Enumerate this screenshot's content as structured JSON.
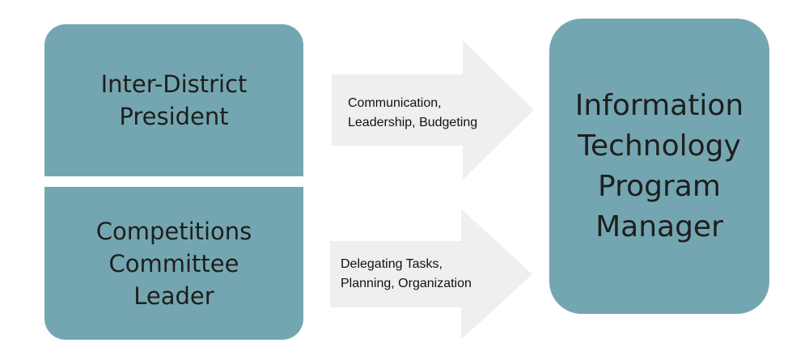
{
  "diagram": {
    "left_boxes": [
      {
        "label": "Inter-District\nPresident"
      },
      {
        "label": "Competitions\nCommittee\nLeader"
      }
    ],
    "arrows": [
      {
        "label": "Communication,\nLeadership, Budgeting"
      },
      {
        "label": "Delegating Tasks,\nPlanning, Organization"
      }
    ],
    "target_box": {
      "label": "Information\nTechnology\nProgram\nManager"
    },
    "colors": {
      "box_fill": "#74a6b1",
      "arrow_fill": "#efefef",
      "text": "#1e1e1e"
    }
  }
}
